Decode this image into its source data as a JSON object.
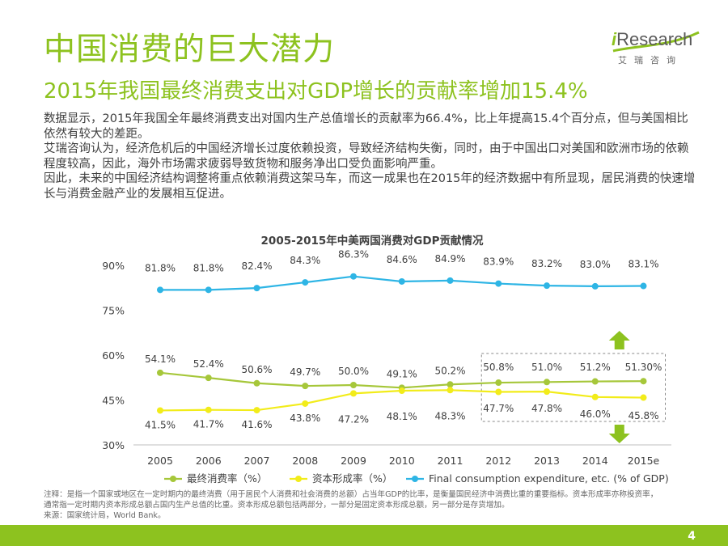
{
  "header": {
    "title": "中国消费的巨大潜力",
    "subtitle": "2015年我国最终消费支出对GDP增长的贡献率增加15.4%"
  },
  "logo": {
    "brand_i": "i",
    "brand_rest": "Research",
    "cn": "艾瑞咨询"
  },
  "body": {
    "p1": "数据显示，2015年我国全年最终消费支出对国内生产总值增长的贡献率为66.4%，比上年提高15.4个百分点，但与美国相比依然有较大的差距。",
    "p2": "艾瑞咨询认为，经济危机后的中国经济增长过度依赖投资，导致经济结构失衡，同时，由于中国出口对美国和欧洲市场的依赖程度较高，因此，海外市场需求疲弱导致货物和服务净出口受负面影响严重。",
    "p3": "因此，未来的中国经济结构调整将重点依赖消费这架马车，而这一成果也在2015年的经济数据中有所显现，居民消费的快速增长与消费金融产业的发展相互促进。"
  },
  "chart_data": {
    "type": "line",
    "title": "2005-2015年中美两国消费对GDP贡献情况",
    "categories": [
      "2005",
      "2006",
      "2007",
      "2008",
      "2009",
      "2010",
      "2011",
      "2012",
      "2013",
      "2014",
      "2015e"
    ],
    "ylim": [
      30,
      90
    ],
    "yticks": [
      30,
      45,
      60,
      75,
      90
    ],
    "ytick_labels": [
      "30%",
      "45%",
      "60%",
      "75%",
      "90%"
    ],
    "series": [
      {
        "name": "最终消费率（%）",
        "color": "#a6c73a",
        "values": [
          54.1,
          52.4,
          50.6,
          49.7,
          50.0,
          49.1,
          50.2,
          50.8,
          51.0,
          51.2,
          51.3
        ],
        "labels": [
          "54.1%",
          "52.4%",
          "50.6%",
          "49.7%",
          "50.0%",
          "49.1%",
          "50.2%",
          "50.8%",
          "51.0%",
          "51.2%",
          "51.30%"
        ]
      },
      {
        "name": "资本形成率（%）",
        "color": "#f2ec1a",
        "values": [
          41.5,
          41.7,
          41.6,
          43.8,
          47.2,
          48.1,
          48.3,
          47.7,
          47.8,
          46.0,
          45.8
        ],
        "labels": [
          "41.5%",
          "41.7%",
          "41.6%",
          "43.8%",
          "47.2%",
          "48.1%",
          "48.3%",
          "47.7%",
          "47.8%",
          "46.0%",
          "45.8%"
        ]
      },
      {
        "name": "Final consumption expenditure, etc. (% of GDP)",
        "color": "#2eb5e5",
        "values": [
          81.8,
          81.8,
          82.4,
          84.3,
          86.3,
          84.6,
          84.9,
          83.9,
          83.2,
          83.0,
          83.1
        ],
        "labels": [
          "81.8%",
          "81.8%",
          "82.4%",
          "84.3%",
          "86.3%",
          "84.6%",
          "84.9%",
          "83.9%",
          "83.2%",
          "83.0%",
          "83.1%"
        ]
      }
    ],
    "highlight": {
      "from": "2012",
      "to": "2015e",
      "style": "dashed-box"
    },
    "arrows": [
      {
        "direction": "up",
        "color": "#8dc21f"
      },
      {
        "direction": "down",
        "color": "#8dc21f"
      }
    ],
    "legend": "bottom",
    "grid": false
  },
  "footnote": {
    "line1": "注释：是指一个国家或地区在一定时期内的最终消费（用于居民个人消费和社会消费的总额）占当年GDP的比率，是衡量国民经济中消费比重的重要指标。资本形成率亦称投资率，",
    "line2": "通常指一定时期内资本形成总额占国内生产总值的比重。资本形成总额包括两部分，一部分是固定资本形成总额，另一部分是存货增加。",
    "line3": "来源：国家统计局，World Bank。"
  },
  "page_number": "4"
}
